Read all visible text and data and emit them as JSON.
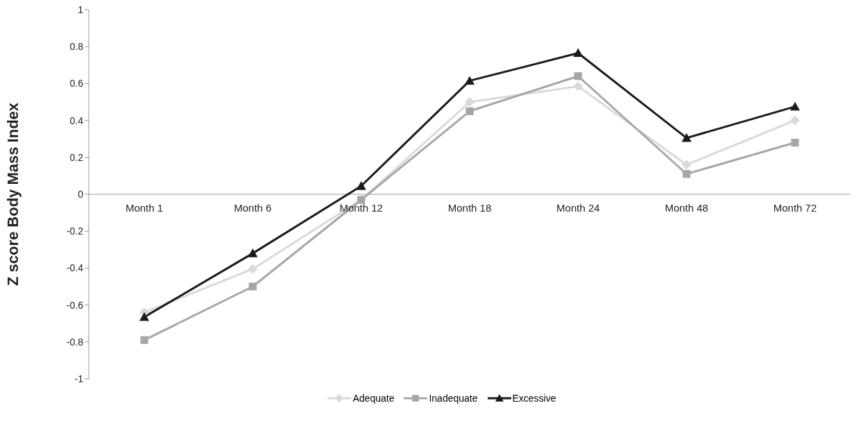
{
  "chart_data": {
    "type": "line",
    "ylabel": "Z score Body  Mass Index",
    "categories": [
      "Month 1",
      "Month 6",
      "Month 12",
      "Month 18",
      "Month 24",
      "Month 48",
      "Month 72"
    ],
    "ylim": [
      -1,
      1
    ],
    "yticks": [
      -1,
      -0.8,
      -0.6,
      -0.4,
      -0.2,
      0,
      0.2,
      0.4,
      0.6,
      0.8,
      1
    ],
    "grid": false,
    "legend": "bottom",
    "series": [
      {
        "name": "Adequate",
        "color": "#d9d9d9",
        "marker": "diamond",
        "values": [
          -0.64,
          -0.405,
          -0.03,
          0.5,
          0.585,
          0.16,
          0.4
        ]
      },
      {
        "name": "Inadequate",
        "color": "#a6a6a6",
        "marker": "square",
        "values": [
          -0.79,
          -0.5,
          -0.03,
          0.45,
          0.64,
          0.11,
          0.28
        ]
      },
      {
        "name": "Excessive",
        "color": "#1a1a1a",
        "marker": "triangle",
        "values": [
          -0.665,
          -0.32,
          0.045,
          0.615,
          0.765,
          0.305,
          0.475
        ]
      }
    ]
  }
}
